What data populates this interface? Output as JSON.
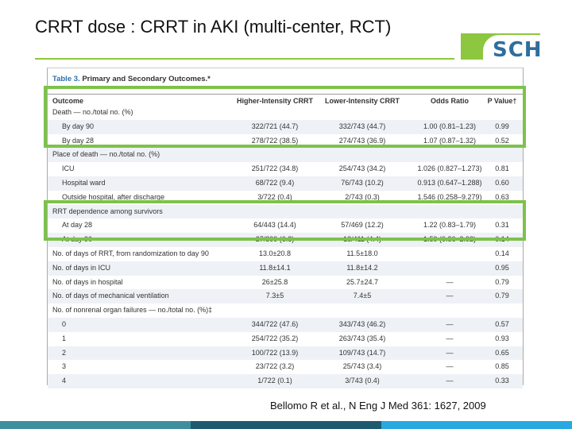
{
  "slide": {
    "title": "CRRT dose : CRRT in AKI (multi-center, RCT)",
    "logo_text": "SCH",
    "citation": "Bellomo R  et al., N Eng J Med 361: 1627, 2009"
  },
  "table": {
    "caption_label": "Table 3.",
    "caption_title": "Primary and Secondary Outcomes.*",
    "headers": [
      "Outcome",
      "Higher-Intensity CRRT",
      "Lower-Intensity CRRT",
      "Odds Ratio",
      "P Value†"
    ],
    "rows": [
      {
        "cells": [
          "Death — no./total no. (%)",
          "",
          "",
          "",
          ""
        ],
        "indent": false
      },
      {
        "cells": [
          "By day 90",
          "322/721 (44.7)",
          "332/743 (44.7)",
          "1.00 (0.81–1.23)",
          "0.99"
        ],
        "indent": true
      },
      {
        "cells": [
          "By day 28",
          "278/722 (38.5)",
          "274/743 (36.9)",
          "1.07 (0.87–1.32)",
          "0.52"
        ],
        "indent": true
      },
      {
        "cells": [
          "Place of death — no./total no. (%)",
          "",
          "",
          "",
          ""
        ],
        "indent": false
      },
      {
        "cells": [
          "ICU",
          "251/722 (34.8)",
          "254/743 (34.2)",
          "1.026 (0.827–1.273)",
          "0.81"
        ],
        "indent": true
      },
      {
        "cells": [
          "Hospital ward",
          "68/722 (9.4)",
          "76/743 (10.2)",
          "0.913 (0.647–1.288)",
          "0.60"
        ],
        "indent": true
      },
      {
        "cells": [
          "Outside hospital, after discharge",
          "3/722 (0.4)",
          "2/743 (0.3)",
          "1.546 (0.258–9.279)",
          "0.63"
        ],
        "indent": true
      },
      {
        "cells": [
          "RRT dependence among survivors",
          "",
          "",
          "",
          ""
        ],
        "indent": false
      },
      {
        "cells": [
          "At day 28",
          "64/443 (14.4)",
          "57/469 (12.2)",
          "1.22 (0.83–1.79)",
          "0.31"
        ],
        "indent": true
      },
      {
        "cells": [
          "At day 90",
          "27/399 (6.8)",
          "18/411 (4.4)",
          "1.59 (0.86–2.92)",
          "0.14"
        ],
        "indent": true
      },
      {
        "cells": [
          "No. of days of RRT, from randomization to day 90",
          "13.0±20.8",
          "11.5±18.0",
          "",
          "0.14"
        ],
        "indent": false
      },
      {
        "cells": [
          "No. of days in ICU",
          "11.8±14.1",
          "11.8±14.2",
          "",
          "0.95"
        ],
        "indent": false
      },
      {
        "cells": [
          "No. of days in hospital",
          "26±25.8",
          "25.7±24.7",
          "—",
          "0.79"
        ],
        "indent": false
      },
      {
        "cells": [
          "No. of days of mechanical ventilation",
          "7.3±5",
          "7.4±5",
          "—",
          "0.79"
        ],
        "indent": false
      },
      {
        "cells": [
          "No. of nonrenal organ failures — no./total no. (%)‡",
          "",
          "",
          "",
          ""
        ],
        "indent": false
      },
      {
        "cells": [
          "0",
          "344/722 (47.6)",
          "343/743 (46.2)",
          "—",
          "0.57"
        ],
        "indent": true
      },
      {
        "cells": [
          "1",
          "254/722 (35.2)",
          "263/743 (35.4)",
          "—",
          "0.93"
        ],
        "indent": true
      },
      {
        "cells": [
          "2",
          "100/722 (13.9)",
          "109/743 (14.7)",
          "—",
          "0.65"
        ],
        "indent": true
      },
      {
        "cells": [
          "3",
          "23/722 (3.2)",
          "25/743 (3.4)",
          "—",
          "0.85"
        ],
        "indent": true
      },
      {
        "cells": [
          "4",
          "1/722 (0.1)",
          "3/743 (0.4)",
          "—",
          "0.33"
        ],
        "indent": true
      }
    ]
  },
  "colors": {
    "accent_green": "#7dc24b",
    "logo_blue": "#2e6e9e",
    "caption_blue": "#2a6fb0"
  }
}
